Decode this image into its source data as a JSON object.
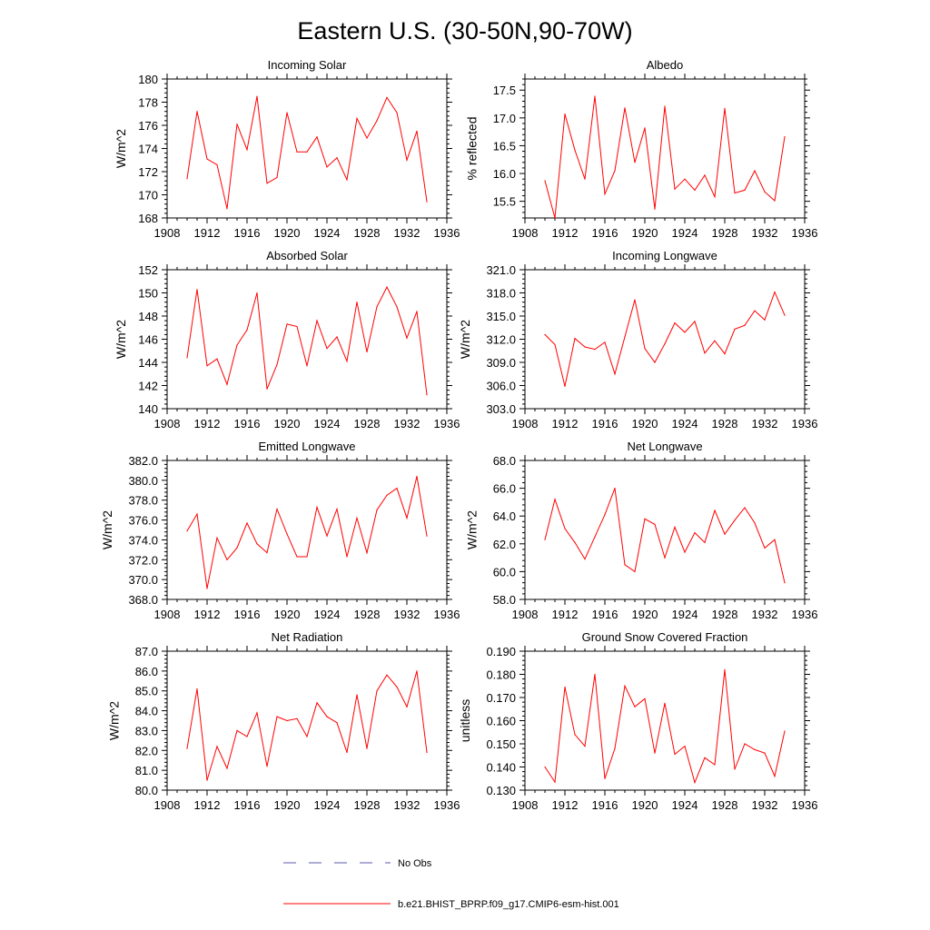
{
  "figure": {
    "title": "Eastern U.S. (30-50N,90-70W)",
    "legend": [
      {
        "label": "No Obs",
        "color": "#5a5aa8",
        "style": "dashed"
      },
      {
        "label": "b.e21.BHIST_BPRP.f09_g17.CMIP6-esm-hist.001",
        "color": "#ff0000",
        "style": "solid"
      }
    ]
  },
  "chart_data": [
    {
      "type": "line",
      "title": "Incoming Solar",
      "xlabel": "",
      "ylabel": "W/m^2",
      "xlim": [
        1908,
        1936
      ],
      "ylim": [
        168,
        180
      ],
      "xticks": [
        "1908",
        "1912",
        "1916",
        "1920",
        "1924",
        "1928",
        "1932",
        "1936"
      ],
      "yticks": [
        "168",
        "170",
        "172",
        "174",
        "176",
        "178",
        "180"
      ],
      "series": [
        {
          "name": "b.e21.BHIST_BPRP.f09_g17.CMIP6-esm-hist.001",
          "color": "#ff0000",
          "x": [
            1910,
            1911,
            1912,
            1913,
            1914,
            1915,
            1916,
            1917,
            1918,
            1919,
            1920,
            1921,
            1922,
            1923,
            1924,
            1925,
            1926,
            1927,
            1928,
            1929,
            1930,
            1931,
            1932,
            1933,
            1934
          ],
          "values": [
            171.4,
            177.2,
            173.1,
            172.6,
            168.8,
            176.1,
            173.9,
            178.5,
            171.0,
            171.5,
            177.1,
            173.7,
            173.7,
            175.0,
            172.4,
            173.2,
            171.3,
            176.6,
            174.9,
            176.4,
            178.4,
            177.1,
            173.0,
            175.5,
            169.4
          ]
        }
      ]
    },
    {
      "type": "line",
      "title": "Albedo",
      "xlabel": "",
      "ylabel": "% reflected",
      "xlim": [
        1908,
        1936
      ],
      "ylim": [
        15.2,
        17.7
      ],
      "xticks": [
        "1908",
        "1912",
        "1916",
        "1920",
        "1924",
        "1928",
        "1932",
        "1936"
      ],
      "yticks": [
        "15.5",
        "16.0",
        "16.5",
        "17.0",
        "17.5"
      ],
      "series": [
        {
          "name": "b.e21.BHIST_BPRP.f09_g17.CMIP6-esm-hist.001",
          "color": "#ff0000",
          "x": [
            1910,
            1911,
            1912,
            1913,
            1914,
            1915,
            1916,
            1917,
            1918,
            1919,
            1920,
            1921,
            1922,
            1923,
            1924,
            1925,
            1926,
            1927,
            1928,
            1929,
            1930,
            1931,
            1932,
            1933,
            1934
          ],
          "values": [
            15.87,
            15.2,
            17.07,
            16.42,
            15.9,
            17.39,
            15.63,
            16.05,
            17.18,
            16.2,
            16.82,
            15.36,
            17.21,
            15.72,
            15.9,
            15.7,
            15.97,
            15.58,
            17.17,
            15.65,
            15.7,
            16.05,
            15.67,
            15.51,
            16.66
          ]
        }
      ]
    },
    {
      "type": "line",
      "title": "Absorbed Solar",
      "xlabel": "",
      "ylabel": "W/m^2",
      "xlim": [
        1908,
        1936
      ],
      "ylim": [
        140,
        152
      ],
      "xticks": [
        "1908",
        "1912",
        "1916",
        "1920",
        "1924",
        "1928",
        "1932",
        "1936"
      ],
      "yticks": [
        "140",
        "142",
        "144",
        "146",
        "148",
        "150",
        "152"
      ],
      "series": [
        {
          "name": "b.e21.BHIST_BPRP.f09_g17.CMIP6-esm-hist.001",
          "color": "#ff0000",
          "x": [
            1910,
            1911,
            1912,
            1913,
            1914,
            1915,
            1916,
            1917,
            1918,
            1919,
            1920,
            1921,
            1922,
            1923,
            1924,
            1925,
            1926,
            1927,
            1928,
            1929,
            1930,
            1931,
            1932,
            1933,
            1934
          ],
          "values": [
            144.4,
            150.3,
            143.7,
            144.3,
            142.1,
            145.5,
            146.8,
            150.0,
            141.7,
            143.8,
            147.3,
            147.1,
            143.7,
            147.6,
            145.2,
            146.2,
            144.1,
            149.2,
            144.9,
            148.8,
            150.5,
            148.8,
            146.1,
            148.4,
            141.2
          ]
        }
      ]
    },
    {
      "type": "line",
      "title": "Incoming Longwave",
      "xlabel": "",
      "ylabel": "W/m^2",
      "xlim": [
        1908,
        1936
      ],
      "ylim": [
        303,
        321
      ],
      "xticks": [
        "1908",
        "1912",
        "1916",
        "1920",
        "1924",
        "1928",
        "1932",
        "1936"
      ],
      "yticks": [
        "303.0",
        "306.0",
        "309.0",
        "312.0",
        "315.0",
        "318.0",
        "321.0"
      ],
      "series": [
        {
          "name": "b.e21.BHIST_BPRP.f09_g17.CMIP6-esm-hist.001",
          "color": "#ff0000",
          "x": [
            1910,
            1911,
            1912,
            1913,
            1914,
            1915,
            1916,
            1917,
            1918,
            1919,
            1920,
            1921,
            1922,
            1923,
            1924,
            1925,
            1926,
            1927,
            1928,
            1929,
            1930,
            1931,
            1932,
            1933,
            1934
          ],
          "values": [
            312.6,
            311.3,
            305.9,
            312.1,
            311.0,
            310.7,
            311.6,
            307.5,
            312.3,
            317.1,
            310.8,
            309.0,
            311.4,
            314.1,
            312.9,
            314.3,
            310.2,
            311.8,
            310.1,
            313.3,
            313.8,
            315.7,
            314.5,
            318.1,
            315.1
          ]
        }
      ]
    },
    {
      "type": "line",
      "title": "Emitted Longwave",
      "xlabel": "",
      "ylabel": "W/m^2",
      "xlim": [
        1908,
        1936
      ],
      "ylim": [
        368,
        382
      ],
      "xticks": [
        "1908",
        "1912",
        "1916",
        "1920",
        "1924",
        "1928",
        "1932",
        "1936"
      ],
      "yticks": [
        "368.0",
        "370.0",
        "372.0",
        "374.0",
        "376.0",
        "378.0",
        "380.0",
        "382.0"
      ],
      "series": [
        {
          "name": "b.e21.BHIST_BPRP.f09_g17.CMIP6-esm-hist.001",
          "color": "#ff0000",
          "x": [
            1910,
            1911,
            1912,
            1913,
            1914,
            1915,
            1916,
            1917,
            1918,
            1919,
            1920,
            1921,
            1922,
            1923,
            1924,
            1925,
            1926,
            1927,
            1928,
            1929,
            1930,
            1931,
            1932,
            1933,
            1934
          ],
          "values": [
            374.9,
            376.6,
            369.1,
            374.2,
            372.0,
            373.2,
            375.7,
            373.6,
            372.7,
            377.1,
            374.6,
            372.3,
            372.3,
            377.3,
            374.4,
            377.1,
            372.3,
            376.2,
            372.7,
            377.0,
            378.5,
            379.2,
            376.2,
            380.4,
            374.4
          ]
        }
      ]
    },
    {
      "type": "line",
      "title": "Net Longwave",
      "xlabel": "",
      "ylabel": "W/m^2",
      "xlim": [
        1908,
        1936
      ],
      "ylim": [
        58,
        68
      ],
      "xticks": [
        "1908",
        "1912",
        "1916",
        "1920",
        "1924",
        "1928",
        "1932",
        "1936"
      ],
      "yticks": [
        "58.0",
        "60.0",
        "62.0",
        "64.0",
        "66.0",
        "68.0"
      ],
      "series": [
        {
          "name": "b.e21.BHIST_BPRP.f09_g17.CMIP6-esm-hist.001",
          "color": "#ff0000",
          "x": [
            1910,
            1911,
            1912,
            1913,
            1914,
            1915,
            1916,
            1917,
            1918,
            1919,
            1920,
            1921,
            1922,
            1923,
            1924,
            1925,
            1926,
            1927,
            1928,
            1929,
            1930,
            1931,
            1932,
            1933,
            1934
          ],
          "values": [
            62.3,
            65.2,
            63.1,
            62.1,
            60.9,
            62.5,
            64.1,
            66.0,
            60.5,
            60.0,
            63.8,
            63.4,
            61.0,
            63.2,
            61.4,
            62.8,
            62.1,
            64.4,
            62.7,
            63.7,
            64.6,
            63.5,
            61.7,
            62.3,
            59.2
          ]
        }
      ]
    },
    {
      "type": "line",
      "title": "Net Radiation",
      "xlabel": "",
      "ylabel": "W/m^2",
      "xlim": [
        1908,
        1936
      ],
      "ylim": [
        80,
        87
      ],
      "xticks": [
        "1908",
        "1912",
        "1916",
        "1920",
        "1924",
        "1928",
        "1932",
        "1936"
      ],
      "yticks": [
        "80.0",
        "81.0",
        "82.0",
        "83.0",
        "84.0",
        "85.0",
        "86.0",
        "87.0"
      ],
      "series": [
        {
          "name": "b.e21.BHIST_BPRP.f09_g17.CMIP6-esm-hist.001",
          "color": "#ff0000",
          "x": [
            1910,
            1911,
            1912,
            1913,
            1914,
            1915,
            1916,
            1917,
            1918,
            1919,
            1920,
            1921,
            1922,
            1923,
            1924,
            1925,
            1926,
            1927,
            1928,
            1929,
            1930,
            1931,
            1932,
            1933,
            1934
          ],
          "values": [
            82.1,
            85.1,
            80.5,
            82.2,
            81.1,
            83.0,
            82.7,
            83.9,
            81.2,
            83.7,
            83.5,
            83.6,
            82.7,
            84.4,
            83.7,
            83.4,
            81.9,
            84.8,
            82.1,
            85.0,
            85.8,
            85.2,
            84.2,
            86.0,
            81.9
          ]
        }
      ]
    },
    {
      "type": "line",
      "title": "Ground Snow Covered Fraction",
      "xlabel": "",
      "ylabel": "unitless",
      "xlim": [
        1908,
        1936
      ],
      "ylim": [
        0.13,
        0.19
      ],
      "xticks": [
        "1908",
        "1912",
        "1916",
        "1920",
        "1924",
        "1928",
        "1932",
        "1936"
      ],
      "yticks": [
        "0.130",
        "0.140",
        "0.150",
        "0.160",
        "0.170",
        "0.180",
        "0.190"
      ],
      "series": [
        {
          "name": "b.e21.BHIST_BPRP.f09_g17.CMIP6-esm-hist.001",
          "color": "#ff0000",
          "x": [
            1910,
            1911,
            1912,
            1913,
            1914,
            1915,
            1916,
            1917,
            1918,
            1919,
            1920,
            1921,
            1922,
            1923,
            1924,
            1925,
            1926,
            1927,
            1928,
            1929,
            1930,
            1931,
            1932,
            1933,
            1934
          ],
          "values": [
            0.14,
            0.1335,
            0.1745,
            0.154,
            0.149,
            0.18,
            0.135,
            0.148,
            0.175,
            0.166,
            0.1695,
            0.146,
            0.1675,
            0.1455,
            0.149,
            0.1333,
            0.144,
            0.141,
            0.182,
            0.139,
            0.15,
            0.1475,
            0.146,
            0.136,
            0.1555
          ]
        }
      ]
    }
  ]
}
